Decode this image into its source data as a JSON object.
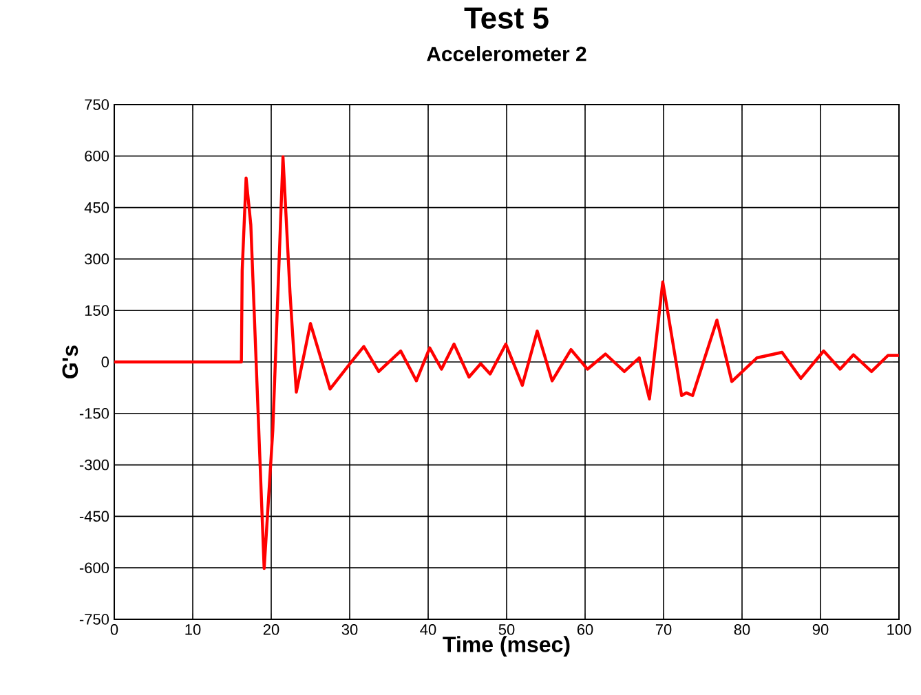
{
  "chart_data": {
    "type": "line",
    "title": "Test 5",
    "subtitle": "Accelerometer 2",
    "xlabel": "Time (msec)",
    "ylabel": "G's",
    "x": [
      0,
      16.2,
      16.3,
      16.8,
      17.4,
      19.1,
      20.2,
      21.5,
      22.4,
      23.2,
      25.0,
      27.5,
      30.2,
      31.8,
      33.7,
      36.5,
      38.5,
      40.2,
      41.7,
      43.3,
      45.2,
      46.7,
      47.9,
      49.9,
      52.0,
      53.9,
      55.8,
      58.2,
      60.3,
      62.6,
      65.0,
      66.9,
      68.2,
      69.9,
      72.3,
      72.9,
      73.7,
      76.8,
      78.7,
      81.9,
      85.1,
      87.5,
      90.4,
      92.5,
      94.2,
      96.5,
      98.6,
      100
    ],
    "values": [
      0,
      0,
      266,
      536,
      400,
      -602,
      -200,
      598,
      200,
      -88,
      112,
      -79,
      0,
      45,
      -28,
      32,
      -55,
      41,
      -21,
      52,
      -44,
      -5,
      -35,
      52,
      -68,
      90,
      -55,
      36,
      -21,
      23,
      -28,
      12,
      -108,
      233,
      -98,
      -90,
      -98,
      122,
      -57,
      12,
      28,
      -48,
      32,
      -21,
      21,
      -28,
      19,
      19
    ],
    "color": "#ff0000",
    "xlim": [
      0,
      100
    ],
    "ylim": [
      -750,
      750
    ],
    "xticks": [
      0,
      10,
      20,
      30,
      40,
      50,
      60,
      70,
      80,
      90,
      100
    ],
    "yticks": [
      -750,
      -600,
      -450,
      -300,
      -150,
      0,
      150,
      300,
      450,
      600,
      750
    ],
    "grid": true
  }
}
